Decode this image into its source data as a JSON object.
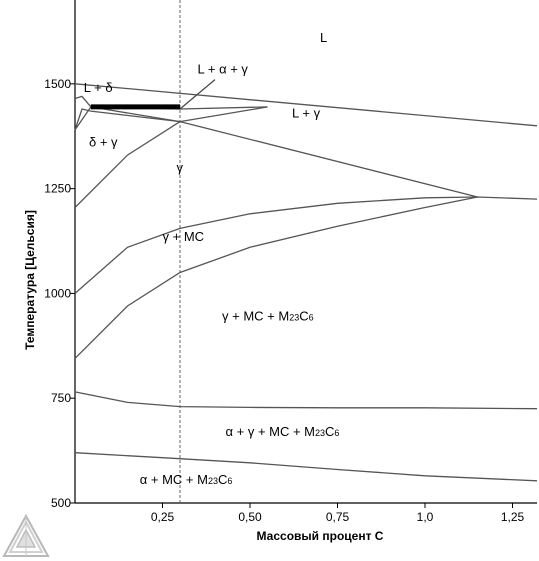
{
  "chart_data": {
    "type": "line",
    "title": "",
    "xlabel": "Массовый процент C",
    "ylabel": "Температура [Цельсия]",
    "xlim": [
      0.0,
      1.32
    ],
    "ylim": [
      500,
      1700
    ],
    "x_ticks": [
      0.25,
      0.5,
      0.75,
      1.0,
      1.25
    ],
    "x_tick_labels": [
      "0,25",
      "0,50",
      "0,75",
      "1,0",
      "1,25"
    ],
    "y_ticks": [
      500,
      750,
      1000,
      1250,
      1500
    ],
    "y_tick_labels": [
      "500",
      "750",
      "1000",
      "1250",
      "1500"
    ],
    "grid": false,
    "reference_line": {
      "x": 0.3,
      "style": "dashed"
    },
    "highlight_segment": {
      "x": [
        0.045,
        0.3
      ],
      "y": 1445
    },
    "series": [
      {
        "x": [
          0.0,
          1.32
        ],
        "y": [
          1500,
          1400
        ]
      },
      {
        "x": [
          0.0,
          0.02,
          0.045,
          0.3,
          0.55
        ],
        "y": [
          1465,
          1470,
          1445,
          1440,
          1445
        ]
      },
      {
        "x": [
          0.0,
          0.045,
          0.3,
          1.15
        ],
        "y": [
          1390,
          1445,
          1410,
          1230
        ]
      },
      {
        "x": [
          0.0,
          0.02,
          0.045,
          0.3,
          0.55
        ],
        "y": [
          1390,
          1440,
          1435,
          1410,
          1445
        ]
      },
      {
        "x": [
          0.0,
          0.15,
          0.3
        ],
        "y": [
          1205,
          1330,
          1410
        ]
      },
      {
        "x": [
          0.0,
          0.15,
          0.3,
          0.5,
          0.75,
          1.0,
          1.15,
          1.32
        ],
        "y": [
          1000,
          1110,
          1155,
          1190,
          1215,
          1228,
          1230,
          1225
        ]
      },
      {
        "x": [
          0.0,
          0.15,
          0.3,
          0.5,
          0.75,
          1.0,
          1.15
        ],
        "y": [
          845,
          970,
          1050,
          1110,
          1160,
          1205,
          1230
        ]
      },
      {
        "x": [
          0.0,
          0.15,
          0.3,
          0.5,
          0.75,
          1.0,
          1.32
        ],
        "y": [
          765,
          740,
          730,
          728,
          727,
          727,
          725
        ]
      },
      {
        "x": [
          0.0,
          0.25,
          0.5,
          0.75,
          1.0,
          1.32
        ],
        "y": [
          620,
          608,
          596,
          580,
          565,
          553
        ]
      }
    ],
    "annotations": [
      {
        "text": "L",
        "x": 0.7,
        "y": 1600
      },
      {
        "text": "L + α + γ",
        "x": 0.35,
        "y": 1525
      },
      {
        "text": "L + δ",
        "x": 0.025,
        "y": 1480
      },
      {
        "text": "L + γ",
        "x": 0.62,
        "y": 1420
      },
      {
        "text": "δ + γ",
        "x": 0.04,
        "y": 1350
      },
      {
        "text": "γ",
        "x": 0.29,
        "y": 1290
      },
      {
        "text": "γ + MC",
        "x": 0.25,
        "y": 1125
      },
      {
        "text": "γ + MC + M₂₃C₆",
        "x": 0.42,
        "y": 935
      },
      {
        "text": "α + γ + MC + M₂₃C₆",
        "x": 0.43,
        "y": 660
      },
      {
        "text": "α + MC + M₂₃C₆",
        "x": 0.185,
        "y": 545
      }
    ],
    "pointer_lines": [
      {
        "x": [
          0.3,
          0.4
        ],
        "y": [
          1440,
          1510
        ]
      }
    ]
  }
}
